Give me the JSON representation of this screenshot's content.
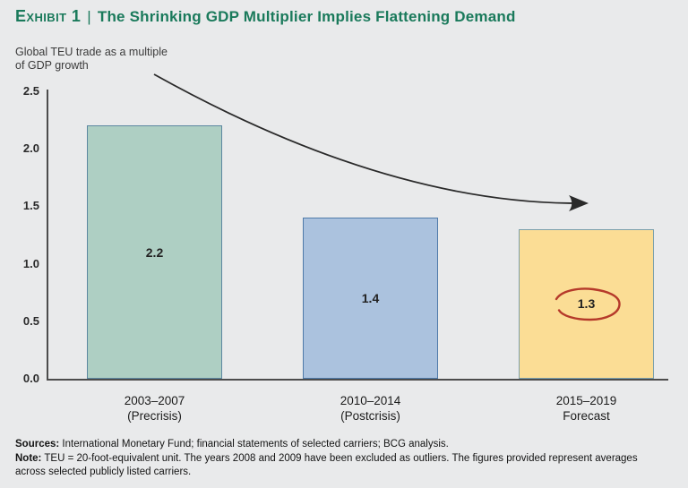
{
  "exhibit": {
    "label": "Exhibit 1",
    "separator": "|",
    "title": "The Shrinking GDP Multiplier Implies Flattening Demand"
  },
  "chart_data": {
    "type": "bar",
    "title": "The Shrinking GDP Multiplier Implies Flattening Demand",
    "ylabel_lines": [
      "Global TEU trade as a multiple",
      "of GDP growth"
    ],
    "categories": [
      {
        "line1": "2003–2007",
        "line2": "(Precrisis)"
      },
      {
        "line1": "2010–2014",
        "line2": "(Postcrisis)"
      },
      {
        "line1": "2015–2019",
        "line2": "Forecast"
      }
    ],
    "values": [
      2.2,
      1.4,
      1.3
    ],
    "value_labels": [
      "2.2",
      "1.4",
      "1.3"
    ],
    "bar_colors": [
      {
        "fill": "#aecfc3",
        "border": "#5c87a0"
      },
      {
        "fill": "#abc2de",
        "border": "#4f7aa9"
      },
      {
        "fill": "#fbdd95",
        "border": "#7ba0ac"
      }
    ],
    "yticks": [
      0,
      0.5,
      1,
      1.5,
      2,
      2.5
    ],
    "ytick_labels": [
      "0.0",
      "0.5",
      "1.0",
      "1.5",
      "2.0",
      "2.5"
    ],
    "ylim": [
      0,
      2.5
    ],
    "grid": false,
    "legend": false,
    "annotations": {
      "circled_value": "1.3",
      "circle_color": "#b5392a",
      "trend_arrow": "decreasing"
    }
  },
  "footnotes": {
    "sources_label": "Sources:",
    "sources_text": " International Monetary Fund; financial statements of selected carriers; BCG analysis.",
    "note_label": "Note:",
    "note_text": " TEU = 20-foot-equivalent unit. The years 2008 and 2009 have been excluded as outliers. The figures provided represent averages across selected publicly listed carriers."
  },
  "colors": {
    "title_green": "#1a7a5b",
    "background": "#e9eaeb",
    "axis": "#4c4c4c",
    "arrow": "#2a2a2a"
  }
}
